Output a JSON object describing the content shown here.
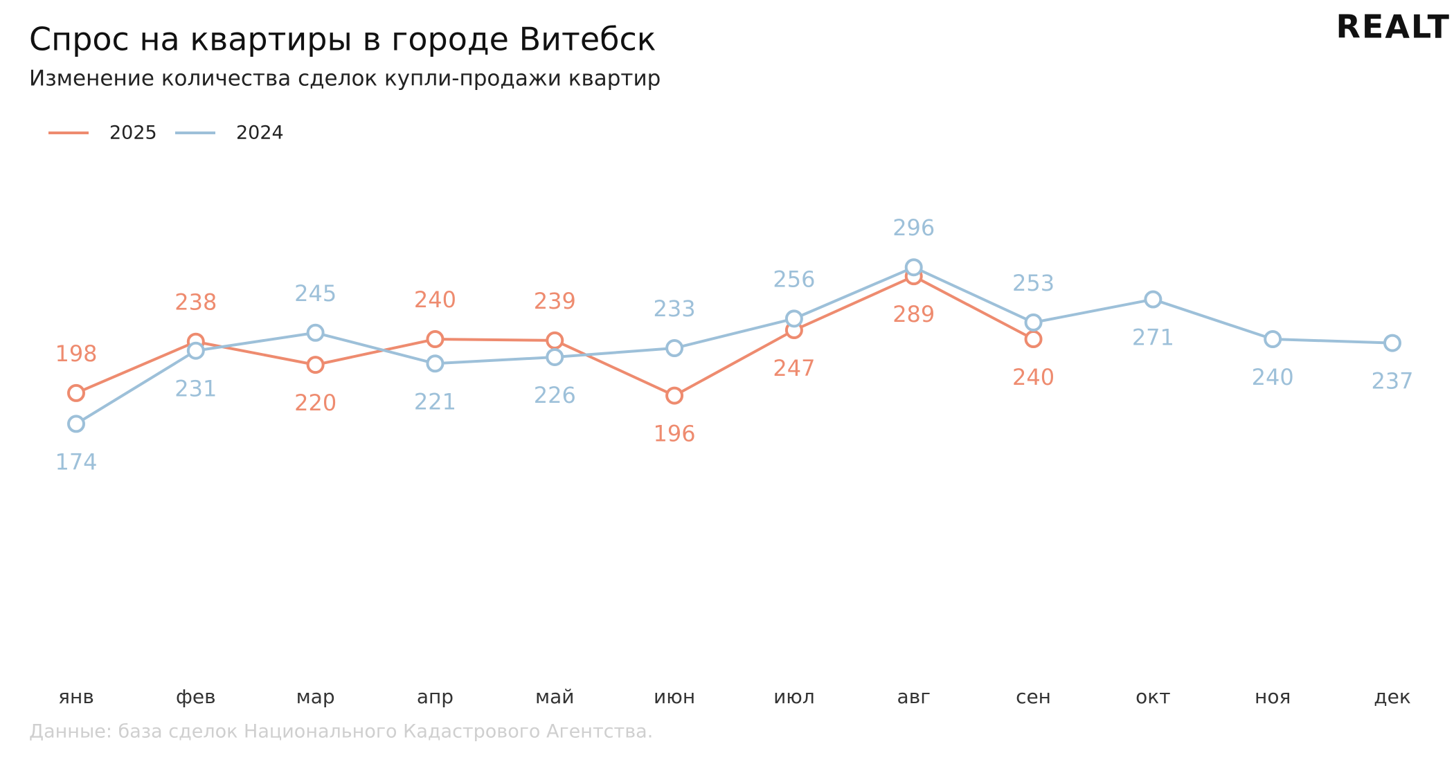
{
  "chart_data": {
    "type": "line",
    "title": "Спрос на квартиры в городе Витебск",
    "subtitle": "Изменение количества сделок купли-продажи квартир",
    "logo": "REALT",
    "source": "Данные: база сделок Национального Кадастрового Агентства.",
    "categories": [
      "янв",
      "фев",
      "мар",
      "апр",
      "май",
      "июн",
      "июл",
      "авг",
      "сен",
      "окт",
      "ноя",
      "дек"
    ],
    "series": [
      {
        "name": "2025",
        "color": "#ee8b6f",
        "values": [
          198,
          238,
          220,
          240,
          239,
          196,
          247,
          289,
          240,
          null,
          null,
          null
        ]
      },
      {
        "name": "2024",
        "color": "#9dc0d9",
        "values": [
          174,
          231,
          245,
          221,
          226,
          233,
          256,
          296,
          253,
          271,
          240,
          237
        ]
      }
    ],
    "ylim": [
      0,
      370
    ]
  }
}
